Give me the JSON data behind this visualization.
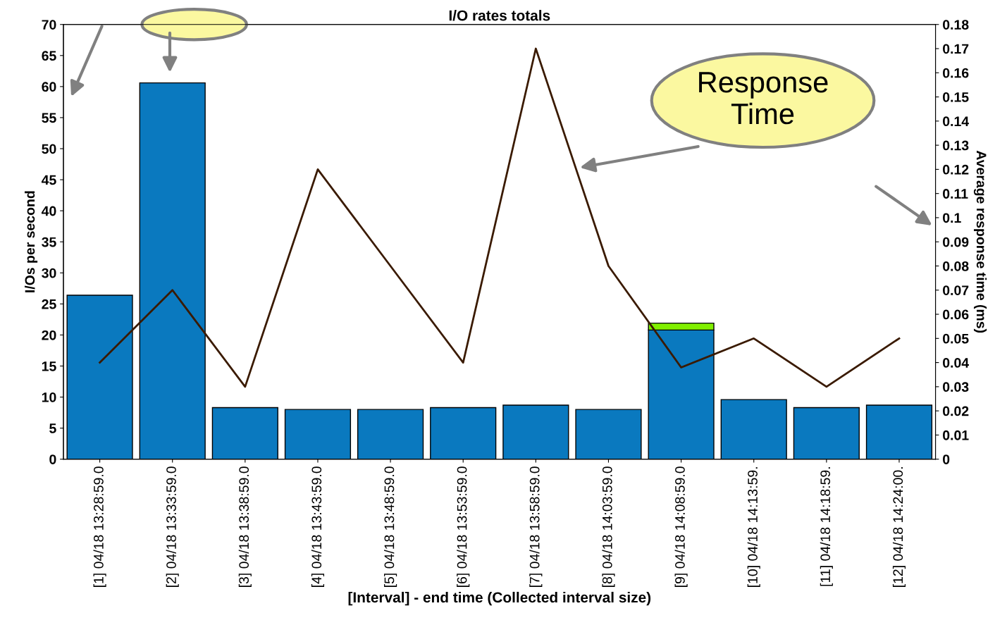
{
  "chart_data": {
    "type": "bar",
    "title": "I/O rates totals",
    "xlabel": "[Interval] - end time (Collected interval size)",
    "ylabel": "I/Os per second",
    "y2label": "Average response time (ms)",
    "categories": [
      "[1] 04/18 13:28:59.0",
      "[2] 04/18 13:33:59.0",
      "[3] 04/18 13:38:59.0",
      "[4] 04/18 13:43:59.0",
      "[5] 04/18 13:48:59.0",
      "[6] 04/18 13:53:59.0",
      "[7] 04/18 13:58:59.0",
      "[8] 04/18 14:03:59.0",
      "[9] 04/18 14:08:59.0",
      "[10] 04/18 14:13:59.",
      "[11] 04/18 14:18:59.",
      "[12] 04/18 14:24:00."
    ],
    "stacked": true,
    "series": [
      {
        "color": "#0a79bf",
        "values": [
          26.4,
          60.6,
          8.3,
          8.0,
          8.0,
          8.3,
          8.7,
          8.0,
          20.8,
          9.6,
          8.3,
          8.7
        ]
      },
      {
        "color": "#80f000",
        "values": [
          null,
          null,
          null,
          null,
          null,
          null,
          null,
          null,
          1.1,
          null,
          null,
          null
        ]
      },
      {
        "type": "line",
        "axis": "y2",
        "color": "#3a1a00",
        "values": [
          0.04,
          0.07,
          0.03,
          0.12,
          0.08,
          0.04,
          0.17,
          0.08,
          0.038,
          0.05,
          0.03,
          0.05
        ]
      }
    ],
    "ylim": [
      0,
      70
    ],
    "yticks": [
      0,
      5,
      10,
      15,
      20,
      25,
      30,
      35,
      40,
      45,
      50,
      55,
      60,
      65,
      70
    ],
    "y2lim": [
      0,
      0.18
    ],
    "y2ticks": [
      0,
      0.01,
      0.02,
      0.03,
      0.04,
      0.05,
      0.06,
      0.07,
      0.08,
      0.09,
      0.1,
      0.11,
      0.12,
      0.13,
      0.14,
      0.15,
      0.16,
      0.17,
      0.18
    ],
    "annotations": [
      "Response Time"
    ],
    "grid": false,
    "legend": false,
    "marker": "none",
    "line_style": "solid"
  }
}
